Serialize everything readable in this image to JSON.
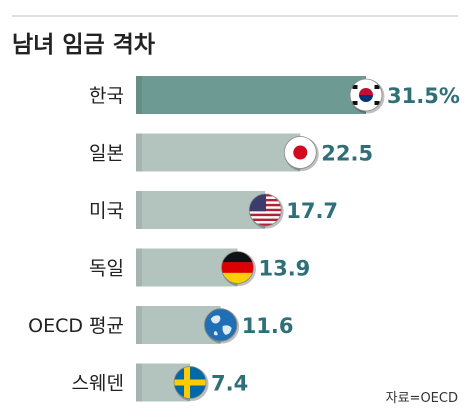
{
  "chart_data": {
    "type": "bar",
    "orientation": "horizontal",
    "title": "남녀 임금 격차",
    "categories": [
      "한국",
      "일본",
      "미국",
      "독일",
      "OECD 평균",
      "스웨덴"
    ],
    "values": [
      31.5,
      22.5,
      17.7,
      13.9,
      11.6,
      7.4
    ],
    "value_labels": [
      "31.5%",
      "22.5",
      "17.7",
      "13.9",
      "11.6",
      "7.4"
    ],
    "flags": [
      "korea-flag-icon",
      "japan-flag-icon",
      "usa-flag-icon",
      "germany-flag-icon",
      "globe-icon",
      "sweden-flag-icon"
    ],
    "highlight_index": 0,
    "source": "자료=OECD",
    "colors": {
      "highlight_bar": "#6e9a94",
      "bar": "#b3c4bf",
      "value_text": "#2f6f78",
      "label_text": "#222222",
      "title_text": "#222222"
    }
  }
}
